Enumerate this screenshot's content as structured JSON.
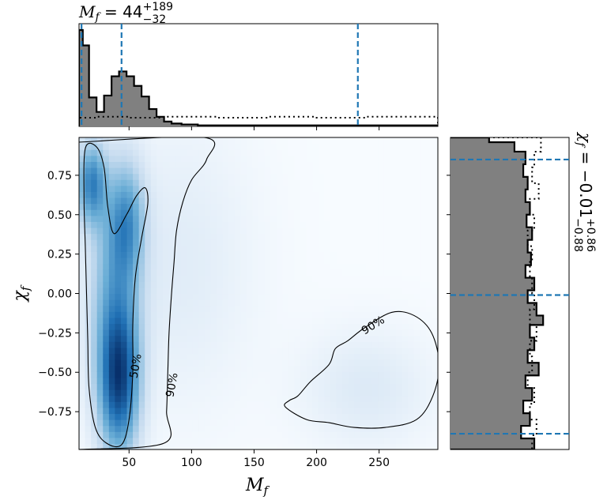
{
  "chart_data": [
    {
      "panel": "top-marginal",
      "type": "step-histogram",
      "title": "M_f = 44 (+189 / −32)",
      "title_main": "M",
      "title_sub": "f",
      "title_eq": " = 44",
      "title_sup": "+189",
      "title_subval": "−32",
      "xlim": [
        10,
        297
      ],
      "quantile_lines": [
        12,
        44,
        233
      ],
      "posterior_bins": [
        [
          10,
          13,
          1.0
        ],
        [
          13,
          18,
          0.84
        ],
        [
          18,
          24,
          0.3
        ],
        [
          24,
          30,
          0.15
        ],
        [
          30,
          36,
          0.32
        ],
        [
          36,
          42,
          0.52
        ],
        [
          42,
          48,
          0.57
        ],
        [
          48,
          54,
          0.52
        ],
        [
          54,
          60,
          0.42
        ],
        [
          60,
          66,
          0.31
        ],
        [
          66,
          72,
          0.18
        ],
        [
          72,
          78,
          0.1
        ],
        [
          78,
          84,
          0.05
        ],
        [
          84,
          92,
          0.03
        ],
        [
          92,
          105,
          0.02
        ],
        [
          105,
          297,
          0.01
        ]
      ],
      "prior_bins": [
        [
          10,
          25,
          0.09
        ],
        [
          25,
          50,
          0.1
        ],
        [
          50,
          80,
          0.09
        ],
        [
          80,
          120,
          0.1
        ],
        [
          120,
          160,
          0.09
        ],
        [
          160,
          200,
          0.1
        ],
        [
          200,
          240,
          0.09
        ],
        [
          240,
          297,
          0.1
        ]
      ]
    },
    {
      "panel": "joint-density",
      "type": "heatmap",
      "xlabel": "M",
      "xlabel_sub": "f",
      "ylabel": "χ",
      "ylabel_sub": "f",
      "xlim": [
        10,
        297
      ],
      "ylim": [
        -0.99,
        0.99
      ],
      "xticks": [
        50,
        100,
        150,
        200,
        250
      ],
      "yticks": [
        0.75,
        0.5,
        0.25,
        0.0,
        -0.25,
        -0.5,
        -0.75
      ],
      "ytick_labels": [
        "0.75",
        "0.50",
        "0.25",
        "0.00",
        "−0.25",
        "−0.50",
        "−0.75"
      ],
      "colormap": "Blues",
      "density_components": [
        {
          "mx": 42,
          "my": -0.55,
          "sx": 11,
          "sy": 0.32,
          "w": 1.0
        },
        {
          "mx": 20,
          "my": 0.7,
          "sx": 8,
          "sy": 0.18,
          "w": 0.75
        },
        {
          "mx": 48,
          "my": 0.45,
          "sx": 10,
          "sy": 0.25,
          "w": 0.55
        },
        {
          "mx": 38,
          "my": 0.0,
          "sx": 14,
          "sy": 0.5,
          "w": 0.45
        },
        {
          "mx": 240,
          "my": -0.6,
          "sx": 35,
          "sy": 0.25,
          "w": 0.12
        },
        {
          "mx": 90,
          "my": 0.2,
          "sx": 40,
          "sy": 0.6,
          "w": 0.1
        }
      ],
      "contours": [
        {
          "label": "50%",
          "label_at": [
            55,
            -0.46
          ],
          "points": [
            [
              15,
              0.92
            ],
            [
              24,
              0.93
            ],
            [
              30,
              0.8
            ],
            [
              33,
              0.55
            ],
            [
              38,
              0.38
            ],
            [
              48,
              0.5
            ],
            [
              56,
              0.62
            ],
            [
              63,
              0.67
            ],
            [
              65,
              0.57
            ],
            [
              60,
              0.35
            ],
            [
              55,
              0.1
            ],
            [
              53,
              -0.2
            ],
            [
              53,
              -0.5
            ],
            [
              50,
              -0.8
            ],
            [
              44,
              -0.96
            ],
            [
              32,
              -0.95
            ],
            [
              23,
              -0.85
            ],
            [
              18,
              -0.6
            ],
            [
              17,
              -0.3
            ],
            [
              16,
              0.0
            ],
            [
              15,
              0.3
            ],
            [
              14,
              0.6
            ]
          ]
        },
        {
          "label": "90%",
          "label_at": [
            84,
            -0.58
          ],
          "points": [
            [
              10,
              0.96
            ],
            [
              110,
              0.99
            ],
            [
              112,
              0.85
            ],
            [
              100,
              0.72
            ],
            [
              93,
              0.58
            ],
            [
              88,
              0.4
            ],
            [
              86,
              0.2
            ],
            [
              84,
              0.0
            ],
            [
              82,
              -0.25
            ],
            [
              81,
              -0.5
            ],
            [
              80,
              -0.75
            ],
            [
              78,
              -0.95
            ],
            [
              10,
              -0.99
            ]
          ]
        },
        {
          "label": "90%",
          "label_at": [
            245,
            -0.2
          ],
          "points": [
            [
              185,
              -0.65
            ],
            [
              195,
              -0.56
            ],
            [
              210,
              -0.45
            ],
            [
              215,
              -0.35
            ],
            [
              225,
              -0.3
            ],
            [
              238,
              -0.22
            ],
            [
              260,
              -0.12
            ],
            [
              278,
              -0.14
            ],
            [
              292,
              -0.25
            ],
            [
              298,
              -0.45
            ],
            [
              293,
              -0.65
            ],
            [
              280,
              -0.8
            ],
            [
              255,
              -0.85
            ],
            [
              230,
              -0.85
            ],
            [
              210,
              -0.82
            ],
            [
              192,
              -0.8
            ],
            [
              175,
              -0.72
            ],
            [
              178,
              -0.68
            ]
          ]
        }
      ]
    },
    {
      "panel": "right-marginal",
      "type": "step-histogram",
      "orientation": "horizontal",
      "title": "χ_f = −0.01 (+0.86 / −0.88)",
      "title_main": "χ",
      "title_sub": "f",
      "title_eq": " = −0.01",
      "title_sup": "+0.86",
      "title_subval": "−0.88",
      "ylim": [
        -0.99,
        0.99
      ],
      "quantile_lines": [
        0.85,
        -0.01,
        -0.89
      ],
      "posterior_bins": [
        [
          0.96,
          0.99,
          0.35
        ],
        [
          0.9,
          0.96,
          0.58
        ],
        [
          0.82,
          0.9,
          0.68
        ],
        [
          0.74,
          0.82,
          0.66
        ],
        [
          0.66,
          0.74,
          0.7
        ],
        [
          0.58,
          0.66,
          0.68
        ],
        [
          0.5,
          0.58,
          0.72
        ],
        [
          0.42,
          0.5,
          0.69
        ],
        [
          0.34,
          0.42,
          0.74
        ],
        [
          0.26,
          0.34,
          0.7
        ],
        [
          0.18,
          0.26,
          0.73
        ],
        [
          0.1,
          0.18,
          0.68
        ],
        [
          0.02,
          0.1,
          0.76
        ],
        [
          -0.06,
          0.02,
          0.7
        ],
        [
          -0.14,
          -0.06,
          0.78
        ],
        [
          -0.2,
          -0.14,
          0.84
        ],
        [
          -0.28,
          -0.2,
          0.72
        ],
        [
          -0.36,
          -0.28,
          0.76
        ],
        [
          -0.44,
          -0.36,
          0.7
        ],
        [
          -0.52,
          -0.44,
          0.8
        ],
        [
          -0.6,
          -0.52,
          0.68
        ],
        [
          -0.68,
          -0.6,
          0.74
        ],
        [
          -0.76,
          -0.68,
          0.66
        ],
        [
          -0.84,
          -0.76,
          0.72
        ],
        [
          -0.92,
          -0.84,
          0.64
        ],
        [
          -0.99,
          -0.92,
          0.76
        ]
      ],
      "prior_bins": [
        [
          0.9,
          0.99,
          0.82
        ],
        [
          0.8,
          0.9,
          0.76
        ],
        [
          0.7,
          0.8,
          0.74
        ],
        [
          0.6,
          0.7,
          0.8
        ],
        [
          0.5,
          0.6,
          0.72
        ],
        [
          0.4,
          0.5,
          0.76
        ],
        [
          0.3,
          0.4,
          0.7
        ],
        [
          0.2,
          0.3,
          0.74
        ],
        [
          0.1,
          0.2,
          0.72
        ],
        [
          0.0,
          0.1,
          0.74
        ],
        [
          -0.1,
          0.0,
          0.76
        ],
        [
          -0.2,
          -0.1,
          0.72
        ],
        [
          -0.3,
          -0.2,
          0.78
        ],
        [
          -0.4,
          -0.3,
          0.72
        ],
        [
          -0.5,
          -0.4,
          0.74
        ],
        [
          -0.6,
          -0.5,
          0.7
        ],
        [
          -0.7,
          -0.6,
          0.76
        ],
        [
          -0.8,
          -0.7,
          0.72
        ],
        [
          -0.9,
          -0.8,
          0.78
        ],
        [
          -0.99,
          -0.9,
          0.74
        ]
      ]
    }
  ]
}
